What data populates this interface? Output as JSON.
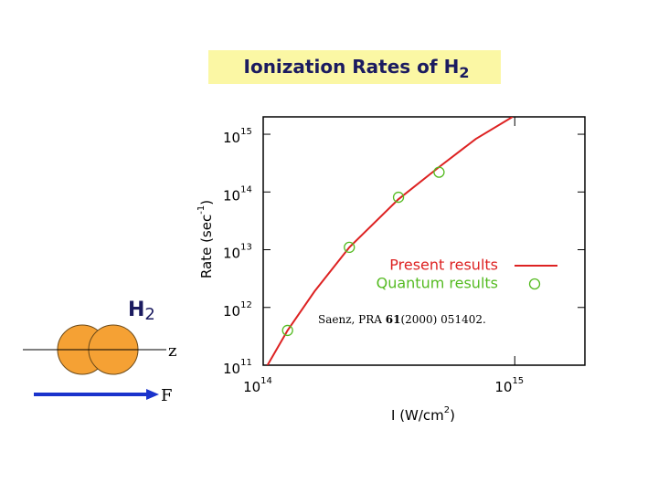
{
  "title": {
    "text": "Ionization Rates of H",
    "sub": "2"
  },
  "diagram": {
    "molecule_label": "H",
    "molecule_subscript": "2",
    "axis_label": "z",
    "field_label": "F"
  },
  "chart_data": {
    "type": "line",
    "x_label": {
      "text": "I (W/cm",
      "sup": "2",
      "end": ")"
    },
    "y_label": {
      "text": "Rate (sec",
      "sup": "-1",
      "end": ")"
    },
    "annotation": {
      "prefix": "Saenz, PRA ",
      "volume": "61",
      "rest": "(2000) 051402."
    },
    "x_log": true,
    "y_log": true,
    "grid": false,
    "legend": "right",
    "xlim": [
      100000000000000.0,
      1900000000000000.0
    ],
    "ylim": [
      100000000000.0,
      2000000000000000.0
    ],
    "xticks": [
      {
        "value": 100000000000000.0,
        "label": "10",
        "sup": "14"
      },
      {
        "value": 1000000000000000.0,
        "label": "10",
        "sup": "15"
      }
    ],
    "yticks": [
      {
        "value": 100000000000.0,
        "label": "10",
        "sup": "11"
      },
      {
        "value": 1000000000000.0,
        "label": "10",
        "sup": "12"
      },
      {
        "value": 10000000000000.0,
        "label": "10",
        "sup": "13"
      },
      {
        "value": 100000000000000.0,
        "label": "10",
        "sup": "14"
      },
      {
        "value": 1000000000000000.0,
        "label": "10",
        "sup": "15"
      }
    ],
    "series": [
      {
        "name": "Present results",
        "color": "#dd2222",
        "style": "line",
        "x": [
          104000000000000.0,
          125000000000000.0,
          160000000000000.0,
          220000000000000.0,
          345000000000000.0,
          500000000000000.0,
          700000000000000.0,
          980000000000000.0
        ],
        "values": [
          100000000000.0,
          400000000000.0,
          1900000000000.0,
          11000000000000.0,
          75000000000000.0,
          270000000000000.0,
          830000000000000.0,
          2000000000000000.0
        ]
      },
      {
        "name": "Quantum results",
        "color": "#55bb22",
        "style": "circle",
        "x": [
          125000000000000.0,
          220000000000000.0,
          345000000000000.0,
          500000000000000.0
        ],
        "values": [
          400000000000.0,
          11000000000000.0,
          81000000000000.0,
          220000000000000.0
        ]
      }
    ]
  }
}
